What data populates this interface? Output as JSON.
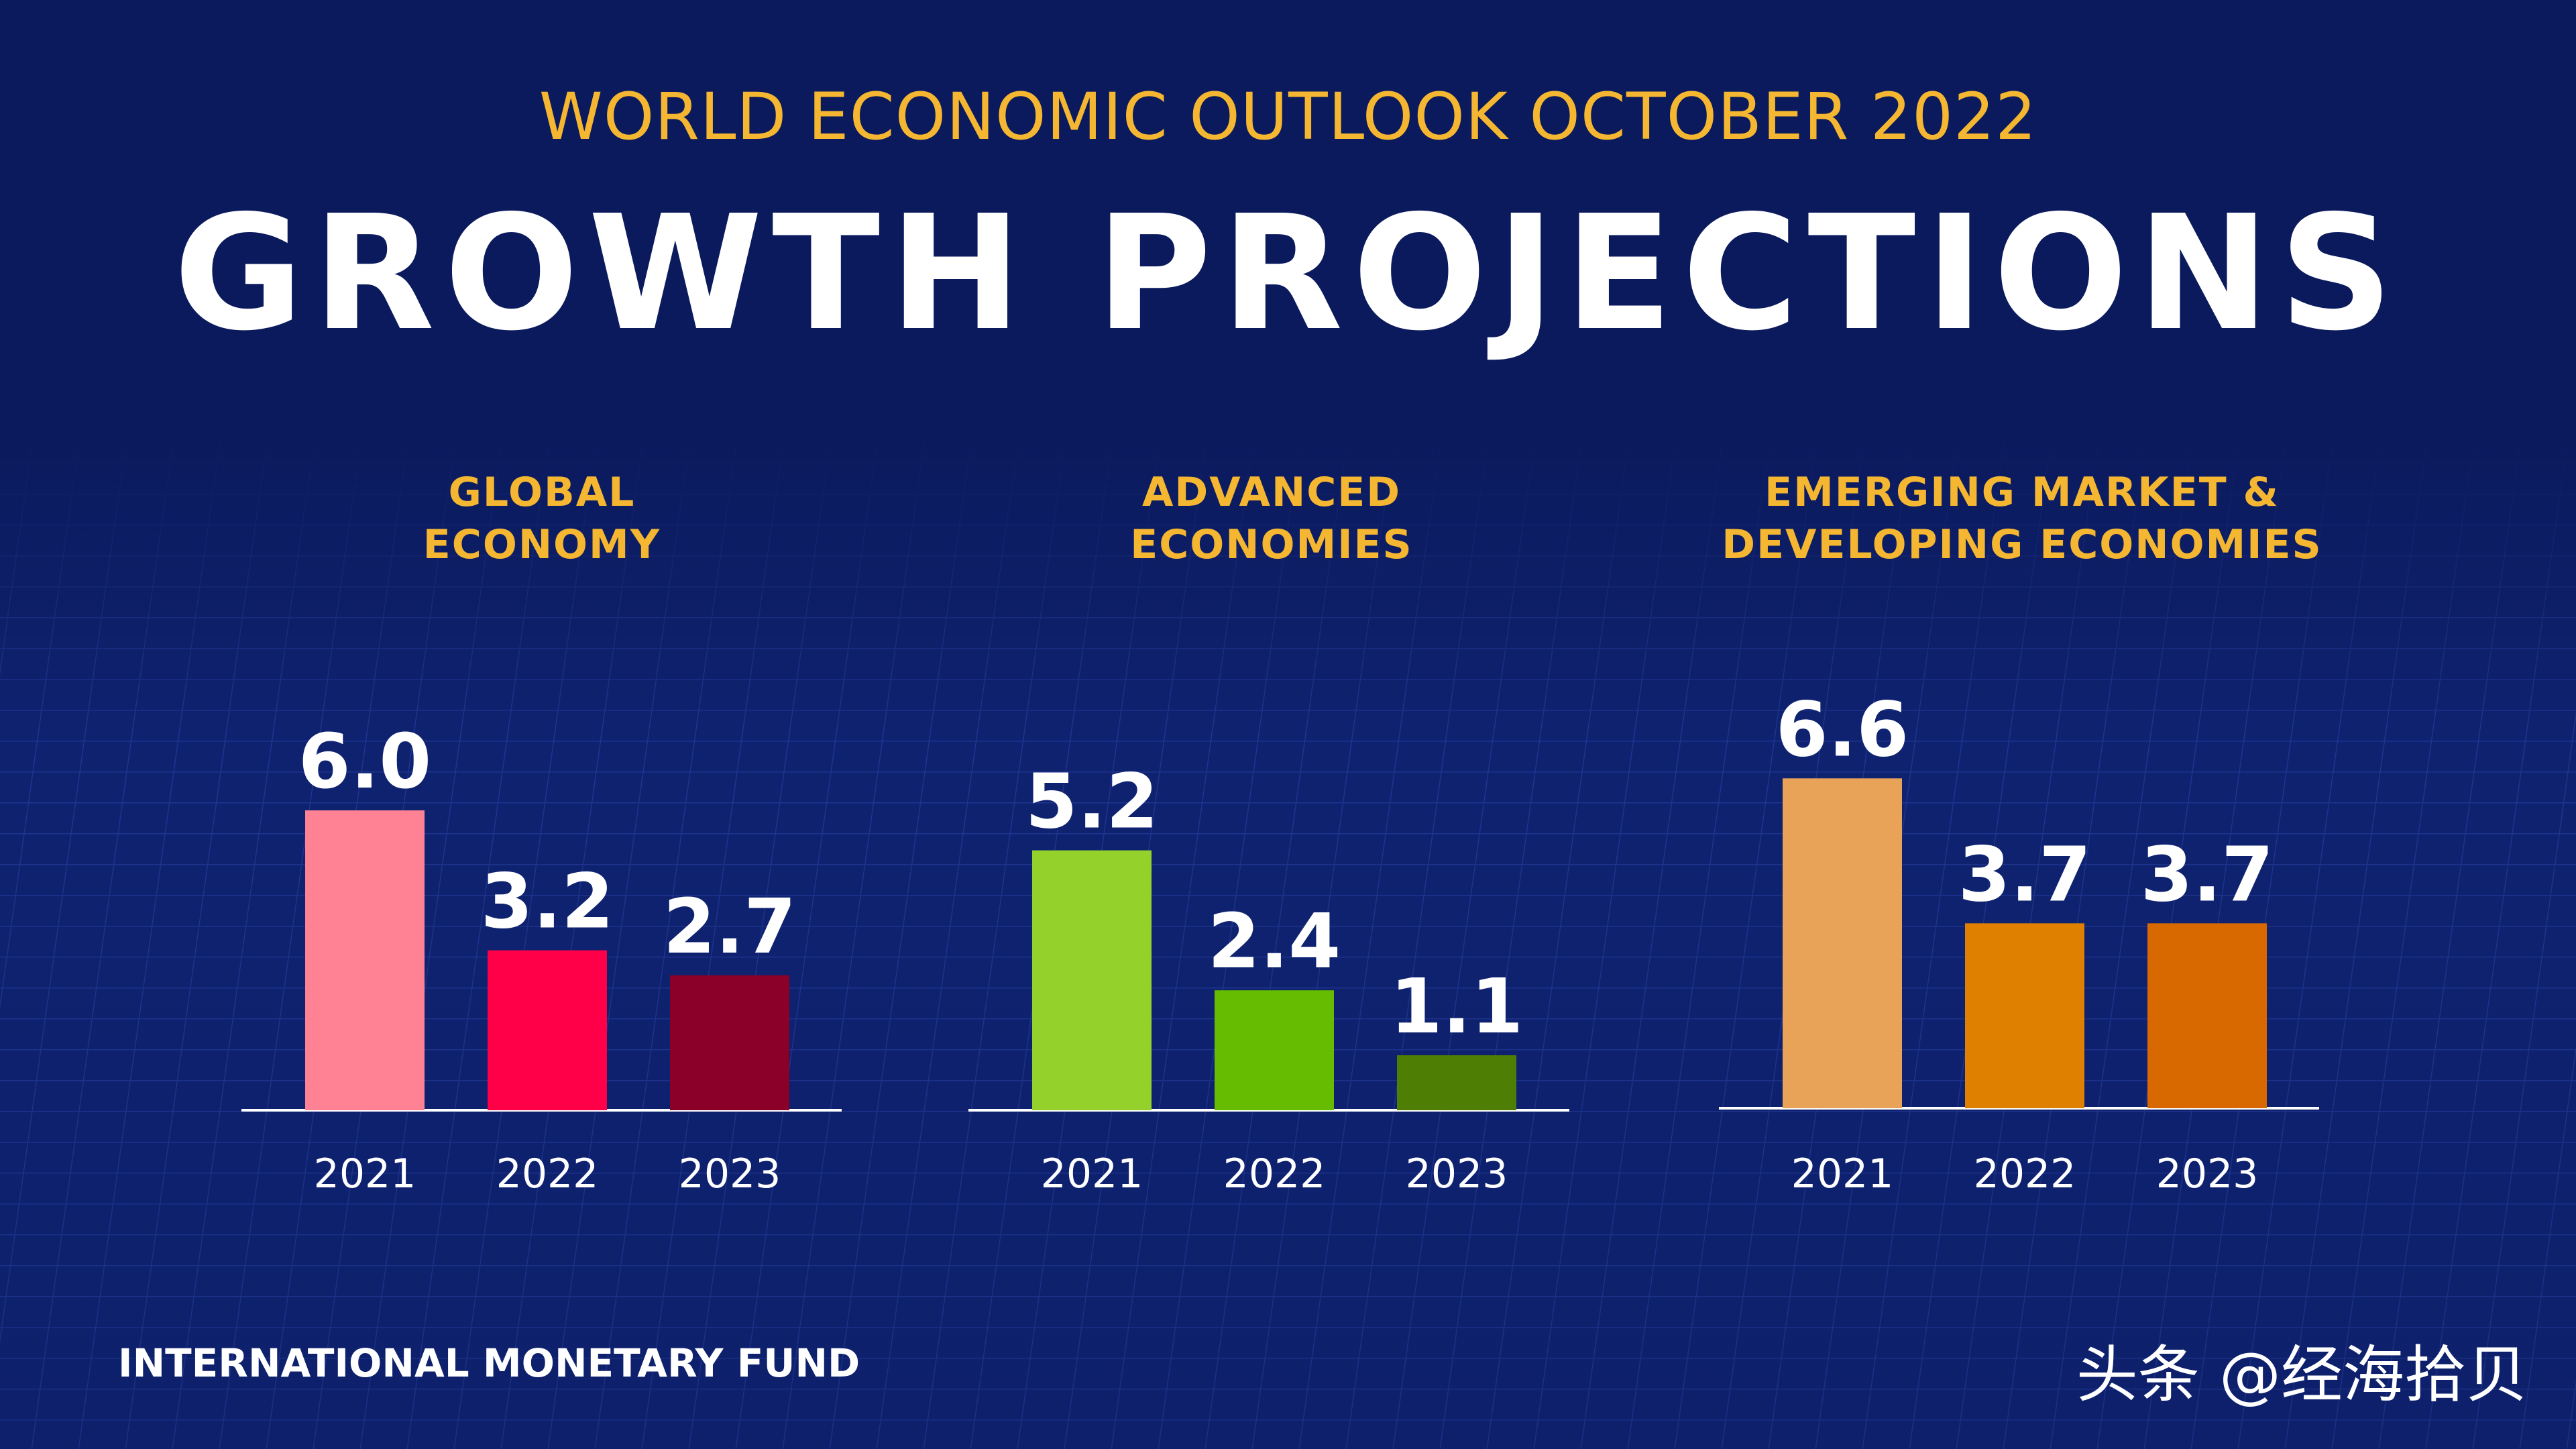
{
  "header": {
    "subtitle": "WORLD ECONOMIC OUTLOOK OCTOBER 2022",
    "title": "GROWTH PROJECTIONS"
  },
  "footer": {
    "org": "INTERNATIONAL MONETARY FUND",
    "watermark": "头条 @经海拾贝"
  },
  "chart_data": [
    {
      "type": "bar",
      "title_lines": [
        "GLOBAL",
        "ECONOMY"
      ],
      "categories": [
        "2021",
        "2022",
        "2023"
      ],
      "values": [
        6.0,
        3.2,
        2.7
      ],
      "value_labels": [
        "6.0",
        "3.2",
        "2.7"
      ],
      "colors": [
        "#ff8294",
        "#ff0048",
        "#8a0029"
      ],
      "ylim": [
        0,
        7
      ]
    },
    {
      "type": "bar",
      "title_lines": [
        "ADVANCED",
        "ECONOMIES"
      ],
      "categories": [
        "2021",
        "2022",
        "2023"
      ],
      "values": [
        5.2,
        2.4,
        1.1
      ],
      "value_labels": [
        "5.2",
        "2.4",
        "1.1"
      ],
      "colors": [
        "#95d12b",
        "#66bc00",
        "#4e7e04"
      ],
      "ylim": [
        0,
        7
      ]
    },
    {
      "type": "bar",
      "title_lines": [
        "EMERGING MARKET &",
        "DEVELOPING ECONOMIES"
      ],
      "categories": [
        "2021",
        "2022",
        "2023"
      ],
      "values": [
        6.6,
        3.7,
        3.7
      ],
      "value_labels": [
        "6.6",
        "3.7",
        "3.7"
      ],
      "colors": [
        "#e8a359",
        "#e08000",
        "#d86800"
      ],
      "ylim": [
        0,
        7
      ]
    }
  ]
}
